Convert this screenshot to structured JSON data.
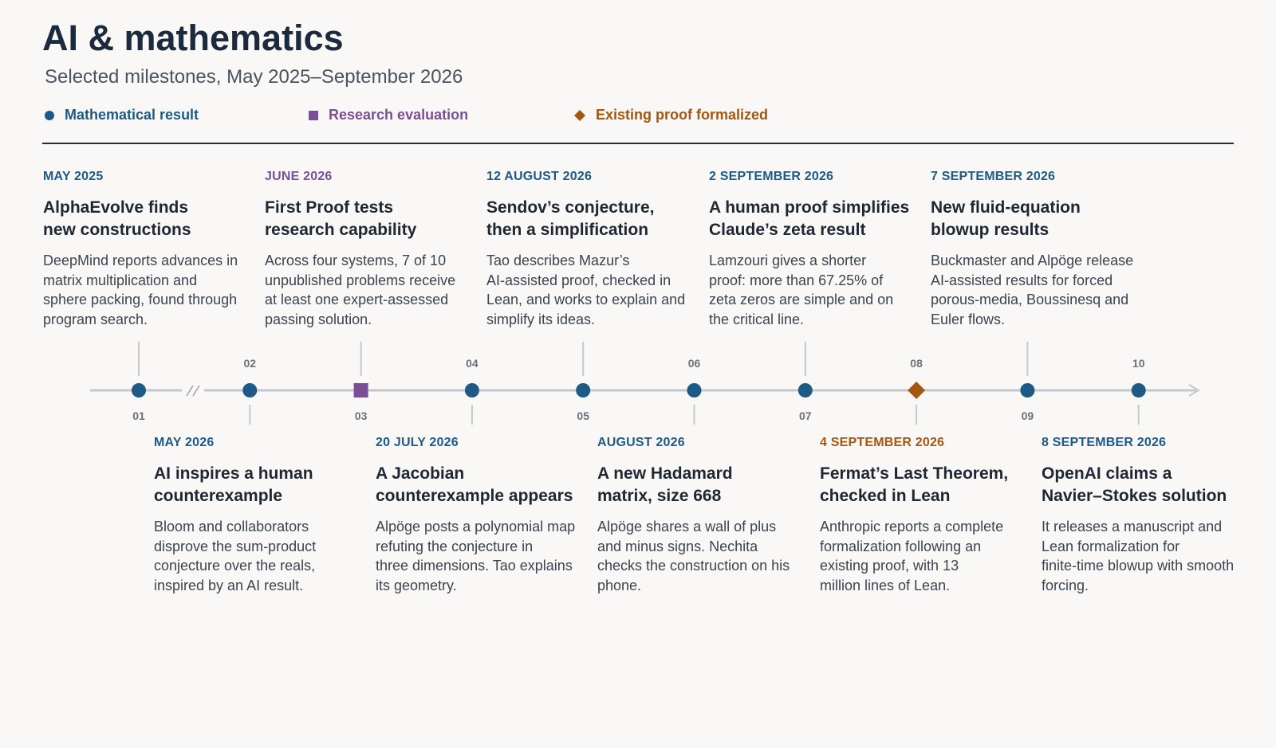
{
  "header": {
    "title": "AI & mathematics",
    "subtitle": "Selected milestones, May 2025–September 2026"
  },
  "legend": [
    {
      "label": "Mathematical result",
      "shape": "circle",
      "color": "#1d5a86"
    },
    {
      "label": "Research evaluation",
      "shape": "square",
      "color": "#7b4f95"
    },
    {
      "label": "Existing proof formalized",
      "shape": "diamond",
      "color": "#a3570f"
    }
  ],
  "colors": {
    "result": "#1d5a86",
    "evaluation": "#7b4f95",
    "formalized": "#a3570f",
    "axis": "#c3c9ce",
    "ticks": "#6b7178"
  },
  "events": [
    {
      "num": "01",
      "date": "MAY 2025",
      "title": [
        "AlphaEvolve finds",
        "new constructions"
      ],
      "desc": [
        "DeepMind reports advances in",
        "matrix multiplication and",
        "sphere packing, found through",
        "program search."
      ],
      "kind": "result",
      "side": "top"
    },
    {
      "num": "02",
      "date": "MAY 2026",
      "title": [
        "AI inspires a human",
        "counterexample"
      ],
      "desc": [
        "Bloom and collaborators",
        "disprove the sum-product",
        "conjecture over the reals,",
        "inspired by an AI result."
      ],
      "kind": "result",
      "side": "bottom"
    },
    {
      "num": "03",
      "date": "JUNE 2026",
      "title": [
        "First Proof tests",
        "research capability"
      ],
      "desc": [
        "Across four systems, 7 of 10",
        "unpublished problems receive",
        "at least one expert-assessed",
        "passing solution."
      ],
      "kind": "evaluation",
      "side": "top"
    },
    {
      "num": "04",
      "date": "20 JULY 2026",
      "title": [
        "A Jacobian",
        "counterexample appears"
      ],
      "desc": [
        "Alpöge posts a polynomial map",
        "refuting the conjecture in",
        "three dimensions. Tao explains",
        "its geometry."
      ],
      "kind": "result",
      "side": "bottom"
    },
    {
      "num": "05",
      "date": "12 AUGUST 2026",
      "title": [
        "Sendov’s conjecture,",
        "then a simplification"
      ],
      "desc": [
        "Tao describes Mazur’s",
        "AI-assisted proof, checked in",
        "Lean, and works to explain and",
        "simplify its ideas."
      ],
      "kind": "result",
      "side": "top"
    },
    {
      "num": "06",
      "date": "AUGUST 2026",
      "title": [
        "A new Hadamard",
        "matrix, size 668"
      ],
      "desc": [
        "Alpöge shares a wall of plus",
        "and minus signs. Nechita",
        "checks the construction on his",
        "phone."
      ],
      "kind": "result",
      "side": "bottom"
    },
    {
      "num": "07",
      "date": "2 SEPTEMBER 2026",
      "title": [
        "A human proof simplifies",
        "Claude’s zeta result"
      ],
      "desc": [
        "Lamzouri gives a shorter",
        "proof: more than 67.25% of",
        "zeta zeros are simple and on",
        "the critical line."
      ],
      "kind": "result",
      "side": "top"
    },
    {
      "num": "08",
      "date": "4 SEPTEMBER 2026",
      "title": [
        "Fermat’s Last Theorem,",
        "checked in Lean"
      ],
      "desc": [
        "Anthropic reports a complete",
        "formalization following an",
        "existing proof, with 13",
        "million lines of Lean."
      ],
      "kind": "formalized",
      "side": "bottom"
    },
    {
      "num": "09",
      "date": "7 SEPTEMBER 2026",
      "title": [
        "New fluid-equation",
        "blowup results"
      ],
      "desc": [
        "Buckmaster and Alpöge release",
        "AI-assisted results for forced",
        "porous-media, Boussinesq and",
        "Euler flows."
      ],
      "kind": "result",
      "side": "top"
    },
    {
      "num": "10",
      "date": "8 SEPTEMBER 2026",
      "title": [
        "OpenAI claims a",
        "Navier–Stokes solution"
      ],
      "desc": [
        "It releases a manuscript and",
        "Lean formalization for",
        "finite-time blowup with smooth",
        "forcing."
      ],
      "kind": "result",
      "side": "bottom"
    }
  ]
}
